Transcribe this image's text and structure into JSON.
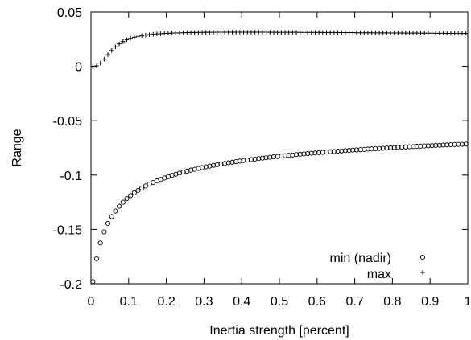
{
  "chart_data": {
    "type": "scatter",
    "xlabel": "Inertia strength [percent]",
    "ylabel": "Range",
    "xlim": [
      0,
      1
    ],
    "ylim": [
      -0.2,
      0.05
    ],
    "x_ticks": [
      0,
      0.1,
      0.2,
      0.3,
      0.4,
      0.5,
      0.6,
      0.7,
      0.8,
      0.9,
      1
    ],
    "x_tick_labels": [
      "0",
      "0.1",
      "0.2",
      "0.3",
      "0.4",
      "0.5",
      "0.6",
      "0.7",
      "0.8",
      "0.9",
      "1"
    ],
    "y_ticks": [
      0.05,
      0,
      -0.05,
      -0.1,
      -0.15,
      -0.2
    ],
    "y_tick_labels": [
      "0.05",
      "0",
      "-0.05",
      "-0.1",
      "-0.15",
      "-0.2"
    ],
    "grid": false,
    "legend_position": "bottom-right",
    "series": [
      {
        "name": "min (nadir)",
        "marker": "circle",
        "x": [
          0.005,
          0.015,
          0.025,
          0.035,
          0.045,
          0.055,
          0.065,
          0.075,
          0.085,
          0.095,
          0.105,
          0.115,
          0.125,
          0.135,
          0.145,
          0.155,
          0.165,
          0.175,
          0.185,
          0.195,
          0.205,
          0.215,
          0.225,
          0.235,
          0.245,
          0.255,
          0.265,
          0.275,
          0.285,
          0.295,
          0.305,
          0.315,
          0.325,
          0.335,
          0.345,
          0.355,
          0.365,
          0.375,
          0.385,
          0.395,
          0.405,
          0.415,
          0.425,
          0.435,
          0.445,
          0.455,
          0.465,
          0.475,
          0.485,
          0.495,
          0.505,
          0.515,
          0.525,
          0.535,
          0.545,
          0.555,
          0.565,
          0.575,
          0.585,
          0.595,
          0.605,
          0.615,
          0.625,
          0.635,
          0.645,
          0.655,
          0.665,
          0.675,
          0.685,
          0.695,
          0.705,
          0.715,
          0.725,
          0.735,
          0.745,
          0.755,
          0.765,
          0.775,
          0.785,
          0.795,
          0.805,
          0.815,
          0.825,
          0.835,
          0.845,
          0.855,
          0.865,
          0.875,
          0.885,
          0.895,
          0.905,
          0.915,
          0.925,
          0.935,
          0.945,
          0.955,
          0.965,
          0.975,
          0.985,
          0.995
        ],
        "y": [
          -0.198,
          -0.177,
          -0.1625,
          -0.1523,
          -0.1445,
          -0.1382,
          -0.1331,
          -0.1287,
          -0.125,
          -0.1217,
          -0.1189,
          -0.1163,
          -0.1141,
          -0.112,
          -0.1101,
          -0.1084,
          -0.1068,
          -0.1053,
          -0.104,
          -0.1027,
          -0.1015,
          -0.1003,
          -0.0993,
          -0.0982,
          -0.0973,
          -0.0964,
          -0.0955,
          -0.0947,
          -0.0939,
          -0.0932,
          -0.0924,
          -0.0918,
          -0.0911,
          -0.0905,
          -0.0899,
          -0.0893,
          -0.0887,
          -0.0882,
          -0.0876,
          -0.0871,
          -0.0866,
          -0.0862,
          -0.0857,
          -0.0853,
          -0.0848,
          -0.0844,
          -0.084,
          -0.0836,
          -0.0832,
          -0.0829,
          -0.0825,
          -0.0822,
          -0.0818,
          -0.0815,
          -0.0811,
          -0.0808,
          -0.0805,
          -0.0802,
          -0.0799,
          -0.0796,
          -0.0793,
          -0.0791,
          -0.0788,
          -0.0785,
          -0.0783,
          -0.078,
          -0.0778,
          -0.0775,
          -0.0773,
          -0.077,
          -0.0768,
          -0.0766,
          -0.0764,
          -0.0761,
          -0.0759,
          -0.0757,
          -0.0755,
          -0.0753,
          -0.0751,
          -0.0749,
          -0.0747,
          -0.0745,
          -0.0743,
          -0.0741,
          -0.0739,
          -0.0738,
          -0.0736,
          -0.0734,
          -0.0732,
          -0.0731,
          -0.0729,
          -0.0727,
          -0.0726,
          -0.0724,
          -0.0723,
          -0.0721,
          -0.0719,
          -0.0718,
          -0.0717,
          -0.0715
        ]
      },
      {
        "name": "max",
        "marker": "plus",
        "x": [
          0.005,
          0.015,
          0.025,
          0.035,
          0.045,
          0.055,
          0.065,
          0.075,
          0.085,
          0.095,
          0.105,
          0.115,
          0.125,
          0.135,
          0.145,
          0.155,
          0.165,
          0.175,
          0.185,
          0.195,
          0.205,
          0.215,
          0.225,
          0.235,
          0.245,
          0.255,
          0.265,
          0.275,
          0.285,
          0.295,
          0.305,
          0.315,
          0.325,
          0.335,
          0.345,
          0.355,
          0.365,
          0.375,
          0.385,
          0.395,
          0.405,
          0.415,
          0.425,
          0.435,
          0.445,
          0.455,
          0.465,
          0.475,
          0.485,
          0.495,
          0.505,
          0.515,
          0.525,
          0.535,
          0.545,
          0.555,
          0.565,
          0.575,
          0.585,
          0.595,
          0.605,
          0.615,
          0.625,
          0.635,
          0.645,
          0.655,
          0.665,
          0.675,
          0.685,
          0.695,
          0.705,
          0.715,
          0.725,
          0.735,
          0.745,
          0.755,
          0.765,
          0.775,
          0.785,
          0.795,
          0.805,
          0.815,
          0.825,
          0.835,
          0.845,
          0.855,
          0.865,
          0.875,
          0.885,
          0.895,
          0.905,
          0.915,
          0.925,
          0.935,
          0.945,
          0.955,
          0.965,
          0.975,
          0.985,
          0.995
        ],
        "y": [
          0.0,
          0.0004,
          0.0029,
          0.0066,
          0.0107,
          0.0146,
          0.018,
          0.0207,
          0.0228,
          0.0245,
          0.0258,
          0.0268,
          0.0276,
          0.0283,
          0.0288,
          0.0292,
          0.0296,
          0.0299,
          0.0301,
          0.0304,
          0.0305,
          0.0307,
          0.0308,
          0.0309,
          0.031,
          0.0311,
          0.0312,
          0.0312,
          0.0313,
          0.0313,
          0.0314,
          0.0314,
          0.0314,
          0.0315,
          0.0315,
          0.0315,
          0.0315,
          0.0315,
          0.0315,
          0.0315,
          0.0315,
          0.0315,
          0.0315,
          0.0315,
          0.0315,
          0.0315,
          0.0315,
          0.0314,
          0.0314,
          0.0314,
          0.0314,
          0.0314,
          0.0314,
          0.0314,
          0.0314,
          0.0313,
          0.0313,
          0.0313,
          0.0313,
          0.0313,
          0.0313,
          0.0312,
          0.0312,
          0.0312,
          0.0312,
          0.0311,
          0.0311,
          0.0311,
          0.0311,
          0.0311,
          0.031,
          0.031,
          0.031,
          0.031,
          0.031,
          0.0309,
          0.0309,
          0.0309,
          0.0309,
          0.0308,
          0.0308,
          0.0308,
          0.0308,
          0.0307,
          0.0307,
          0.0307,
          0.0307,
          0.0306,
          0.0306,
          0.0306,
          0.0306,
          0.0305,
          0.0305,
          0.0305,
          0.0304,
          0.0304,
          0.0304,
          0.0304,
          0.0303,
          0.0303
        ]
      }
    ]
  }
}
